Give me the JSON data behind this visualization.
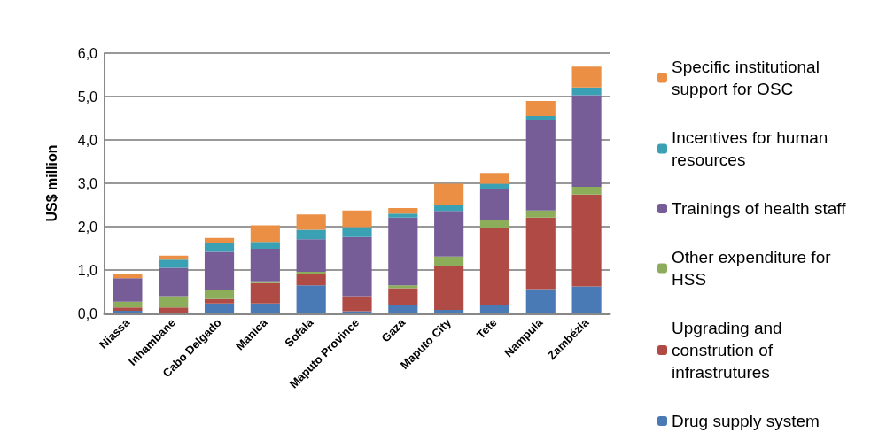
{
  "chart_data": {
    "type": "bar",
    "stacked": true,
    "ylabel": "US$ million",
    "ylim": [
      0,
      6
    ],
    "yticks": [
      {
        "value": 0,
        "label": "0,0"
      },
      {
        "value": 1,
        "label": "1,0"
      },
      {
        "value": 2,
        "label": "2,0"
      },
      {
        "value": 3,
        "label": "3,0"
      },
      {
        "value": 4,
        "label": "4,0"
      },
      {
        "value": 5,
        "label": "5,0"
      },
      {
        "value": 6,
        "label": "6,0"
      }
    ],
    "grid": "y",
    "legend": "right",
    "categories": [
      "Niassa",
      "Inhambane",
      "Cabo Delgado",
      "Manica",
      "Sofala",
      "Maputo Province",
      "Gaza",
      "Maputo City",
      "Tete",
      "Nampula",
      "Zambézia"
    ],
    "series": [
      {
        "name": "Drug supply system",
        "color": "#4a7ab5",
        "values": [
          0.06,
          0,
          0.23,
          0.23,
          0.65,
          0.05,
          0.2,
          0.08,
          0.2,
          0.56,
          0.62
        ]
      },
      {
        "name": "Upgrading and constrution of infrastrutures",
        "color": "#b04a45",
        "values": [
          0.08,
          0.14,
          0.1,
          0.47,
          0.27,
          0.35,
          0.38,
          1.0,
          1.76,
          1.65,
          2.12
        ]
      },
      {
        "name": "Other expenditure for HSS",
        "color": "#8cae5a",
        "values": [
          0.13,
          0.26,
          0.22,
          0.04,
          0.04,
          0,
          0.07,
          0.23,
          0.19,
          0.16,
          0.18
        ]
      },
      {
        "name": "Trainings of health staff",
        "color": "#765d98",
        "values": [
          0.54,
          0.65,
          0.87,
          0.75,
          0.75,
          1.36,
          1.56,
          1.05,
          0.72,
          2.09,
          2.11
        ]
      },
      {
        "name": "Incentives for human resources",
        "color": "#3aa0b3",
        "values": [
          0,
          0.19,
          0.19,
          0.16,
          0.22,
          0.23,
          0.09,
          0.15,
          0.12,
          0.09,
          0.18
        ]
      },
      {
        "name": "Specific institutional support for OSC",
        "color": "#ea8f44",
        "values": [
          0.11,
          0.09,
          0.13,
          0.38,
          0.35,
          0.38,
          0.13,
          0.48,
          0.25,
          0.35,
          0.48
        ]
      }
    ]
  }
}
